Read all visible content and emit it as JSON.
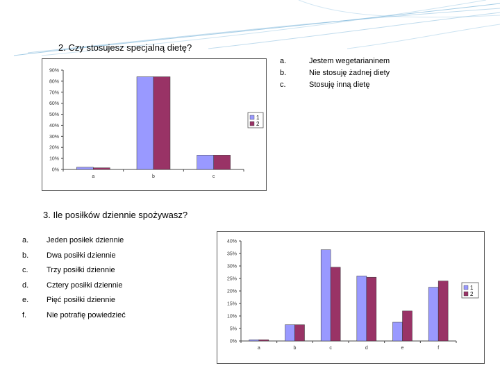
{
  "slide": {
    "accent": "#6fb0d8",
    "q1": {
      "title": "2. Czy stosujesz specjalną dietę?",
      "options": [
        {
          "letter": "a.",
          "text": "Jestem wegetarianinem"
        },
        {
          "letter": "b.",
          "text": "Nie stosuję żadnej diety"
        },
        {
          "letter": "c.",
          "text": "Stosuję inną dietę"
        }
      ]
    },
    "q2": {
      "title": "3. Ile posiłków dziennie spożywasz?",
      "options": [
        {
          "letter": "a.",
          "text": "Jeden posiłek dziennie"
        },
        {
          "letter": "b.",
          "text": "Dwa posiłki dziennie"
        },
        {
          "letter": "c.",
          "text": "Trzy posiłki dziennie"
        },
        {
          "letter": "d.",
          "text": "Cztery posiłki dziennie"
        },
        {
          "letter": "e.",
          "text": "Pięć posiłki dziennie"
        },
        {
          "letter": "f.",
          "text": "Nie potrafię powiedzieć"
        }
      ]
    }
  },
  "chart_data": [
    {
      "type": "bar",
      "title": "",
      "xlabel": "",
      "ylabel": "",
      "categories": [
        "a",
        "b",
        "c"
      ],
      "ylim": [
        0,
        90
      ],
      "ytick_labels": [
        "0%",
        "10%",
        "20%",
        "30%",
        "40%",
        "50%",
        "60%",
        "70%",
        "80%",
        "90%"
      ],
      "series": [
        {
          "name": "1",
          "color": "#9999ff",
          "values": [
            2,
            84,
            13
          ]
        },
        {
          "name": "2",
          "color": "#993366",
          "values": [
            1.5,
            84,
            13
          ]
        }
      ],
      "legend": "right",
      "grid": false
    },
    {
      "type": "bar",
      "title": "",
      "xlabel": "",
      "ylabel": "",
      "categories": [
        "a",
        "b",
        "c",
        "d",
        "e",
        "f"
      ],
      "ylim": [
        0,
        40
      ],
      "ytick_labels": [
        "0%",
        "5%",
        "10%",
        "15%",
        "20%",
        "25%",
        "30%",
        "35%",
        "40%"
      ],
      "series": [
        {
          "name": "1",
          "color": "#9999ff",
          "values": [
            0.5,
            6.5,
            36.5,
            26,
            7.5,
            21.5
          ]
        },
        {
          "name": "2",
          "color": "#993366",
          "values": [
            0.5,
            6.5,
            29.5,
            25.5,
            12,
            24
          ]
        }
      ],
      "legend": "right",
      "grid": false
    }
  ]
}
